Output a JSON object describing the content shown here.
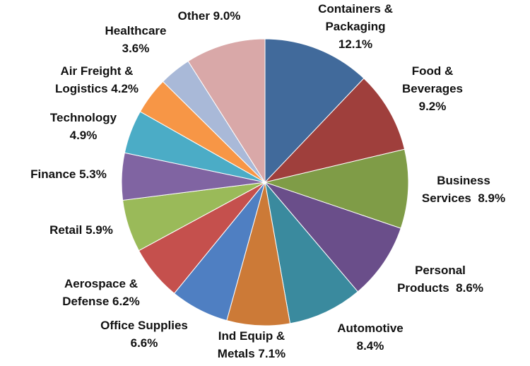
{
  "chart_data": {
    "type": "pie",
    "title": "",
    "series": [
      {
        "values": [
          12.1,
          9.2,
          8.9,
          8.6,
          8.4,
          7.1,
          6.6,
          6.2,
          5.9,
          5.3,
          4.9,
          4.2,
          3.6,
          9.0
        ]
      }
    ],
    "categories": [
      "Containers & Packaging",
      "Food & Beverages",
      "Business Services",
      "Personal Products",
      "Automotive",
      "Ind Equip & Metals",
      "Office Supplies",
      "Aerospace & Defense",
      "Retail",
      "Finance",
      "Technology",
      "Air Freight & Logistics",
      "Healthcare",
      "Other"
    ],
    "labels": [
      [
        "Containers &",
        "Packaging",
        "12.1%"
      ],
      [
        "Food &",
        "Beverages",
        "9.2%"
      ],
      [
        "Business",
        "Services  8.9%"
      ],
      [
        "Personal",
        "Products  8.6%"
      ],
      [
        "Automotive",
        "8.4%"
      ],
      [
        "Ind Equip &",
        "Metals 7.1%"
      ],
      [
        "Office Supplies",
        "6.6%"
      ],
      [
        "Aerospace &",
        "Defense 6.2%"
      ],
      [
        "Retail 5.9%"
      ],
      [
        "Finance 5.3%"
      ],
      [
        "Technology",
        "4.9%"
      ],
      [
        "Air Freight &",
        "Logistics 4.2%"
      ],
      [
        "Healthcare",
        "3.6%"
      ],
      [
        "Other 9.0%"
      ]
    ],
    "colors": [
      "#416a9b",
      "#9f3f3c",
      "#7f9c47",
      "#6a4e8a",
      "#3a8a9e",
      "#cc7a37",
      "#4f7fc2",
      "#c5504d",
      "#9aba59",
      "#8064a2",
      "#4bacc6",
      "#f79646",
      "#a9b9d8",
      "#d9a8a8"
    ],
    "start_angle_deg": 0,
    "direction": "clockwise",
    "legend": "none"
  }
}
